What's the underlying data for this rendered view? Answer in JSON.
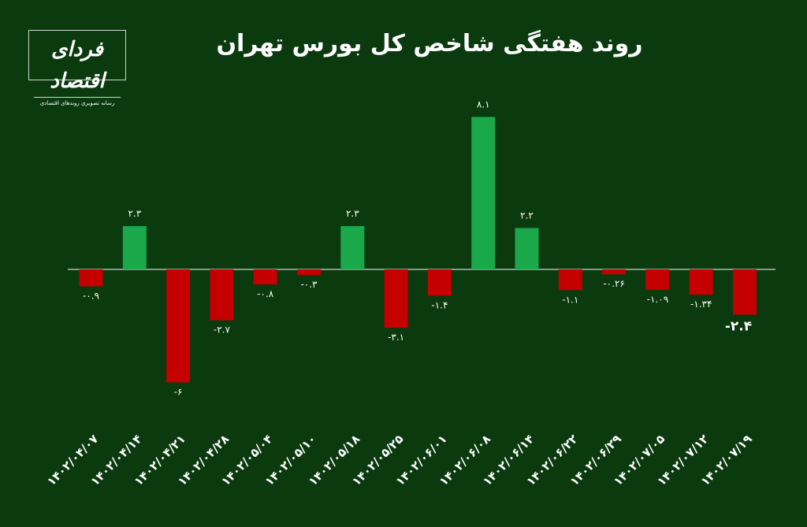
{
  "title": "روند هفتگی شاخص کل بورس تهران",
  "logo": {
    "name": "فردای اقتصاد",
    "tagline": "رسانه تصویری روندهای اقتصادی"
  },
  "colors": {
    "background": "#0b3a0f",
    "positive": "#1aa84a",
    "negative": "#c40000",
    "text": "#ffffff"
  },
  "chart_data": {
    "type": "bar",
    "categories": [
      "۱۴۰۲/۰۴/۰۷",
      "۱۴۰۲/۰۴/۱۴",
      "۱۴۰۲/۰۴/۲۱",
      "۱۴۰۲/۰۴/۲۸",
      "۱۴۰۲/۰۵/۰۴",
      "۱۴۰۲/۰۵/۱۰",
      "۱۴۰۲/۰۵/۱۸",
      "۱۴۰۲/۰۵/۲۵",
      "۱۴۰۲/۰۶/۰۱",
      "۱۴۰۲/۰۶/۰۸",
      "۱۴۰۲/۰۶/۱۴",
      "۱۴۰۲/۰۶/۲۲",
      "۱۴۰۲/۰۶/۲۹",
      "۱۴۰۲/۰۷/۰۵",
      "۱۴۰۲/۰۷/۱۲",
      "۱۴۰۲/۰۷/۱۹"
    ],
    "values": [
      -0.9,
      2.3,
      -6,
      -2.7,
      -0.8,
      -0.3,
      2.3,
      -3.1,
      -1.4,
      8.1,
      2.2,
      -1.1,
      -0.26,
      -1.09,
      -1.34,
      -2.4
    ],
    "value_labels": [
      "-۰.۹",
      "۲.۳",
      "-۶",
      "-۲.۷",
      "-۰.۸",
      "-۰.۳",
      "۲.۳",
      "-۳.۱",
      "-۱.۴",
      "۸.۱",
      "۲.۲",
      "-۱.۱",
      "-۰.۲۶",
      "-۱.۰۹",
      "-۱.۳۴",
      "-۲.۴"
    ],
    "highlight_index": 15,
    "grid": false,
    "legend": "none",
    "ylim": [
      -7,
      9
    ]
  }
}
